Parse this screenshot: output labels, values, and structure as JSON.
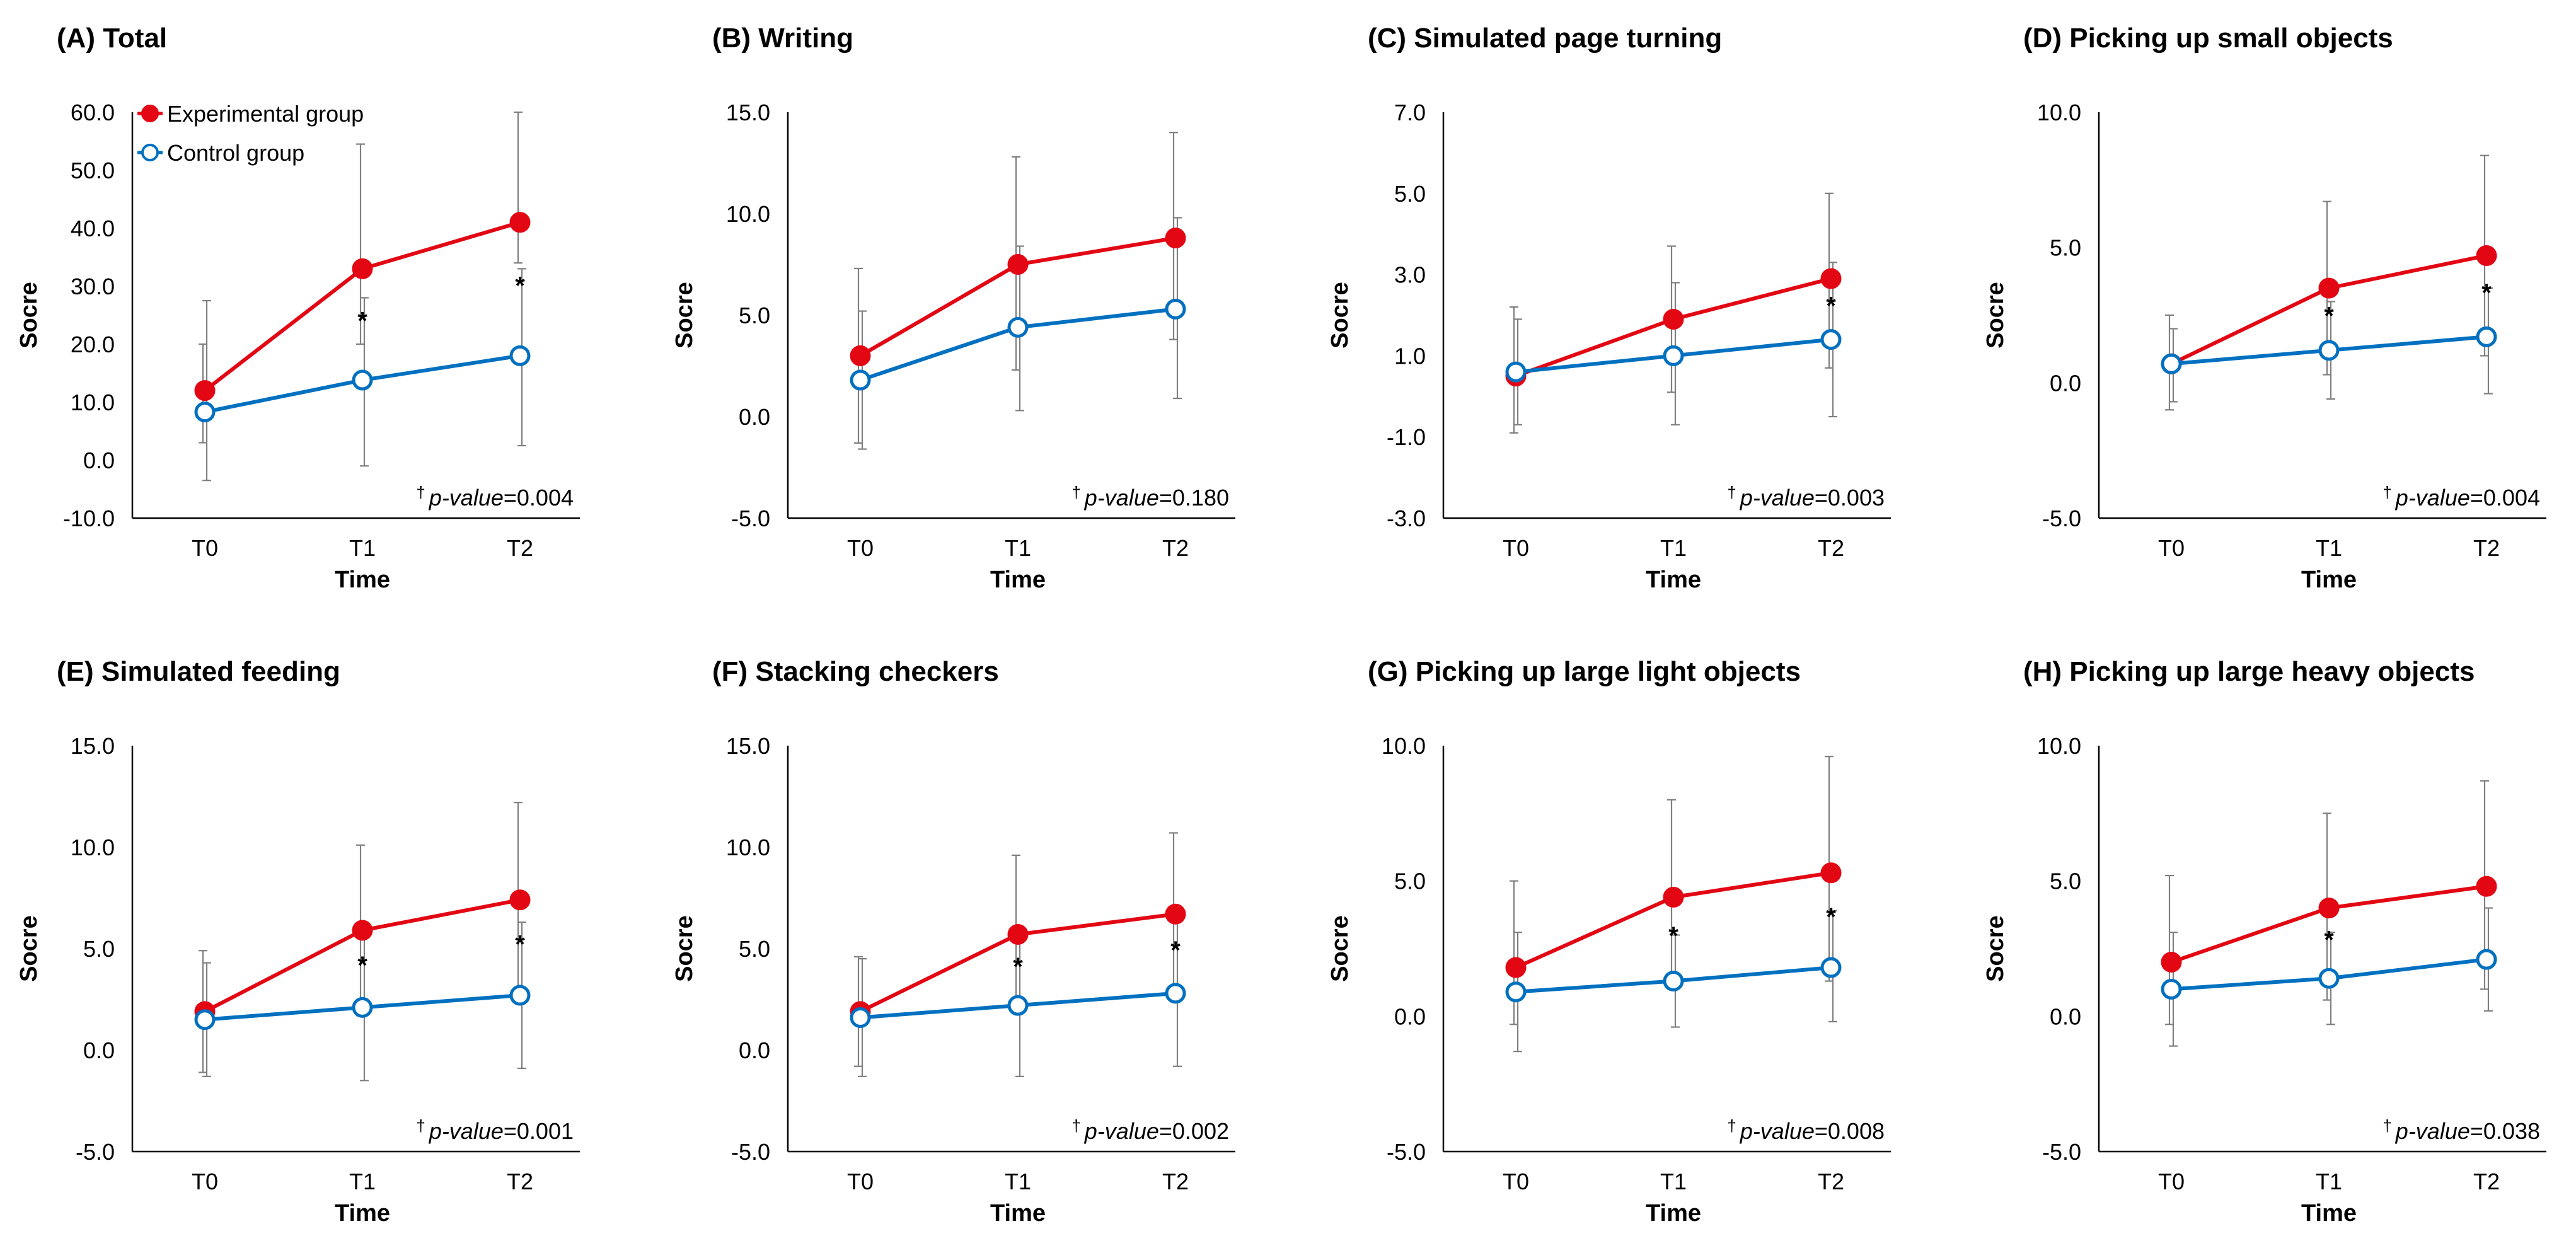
{
  "legend": {
    "experimental": "Experimental group",
    "control": "Control group"
  },
  "colors": {
    "experimental": "#e30613",
    "control": "#0070c0",
    "errorbar": "#7f7f7f",
    "axis": "#000000"
  },
  "pvalue_prefix": "p-value",
  "chart_data": [
    {
      "type": "line",
      "title": "(A) Total",
      "categories": [
        "T0",
        "T1",
        "T2"
      ],
      "xlabel": "Time",
      "ylabel": "Socre",
      "ylim": [
        -10,
        60
      ],
      "yticks": [
        -10,
        0,
        10,
        20,
        30,
        40,
        50,
        60
      ],
      "series": [
        {
          "name": "Experimental group",
          "values": [
            12.0,
            33.0,
            41.0
          ],
          "error_low": [
            3.0,
            20.0,
            34.0
          ],
          "error_high": [
            20.0,
            54.5,
            60.0
          ]
        },
        {
          "name": "Control group",
          "values": [
            8.3,
            13.8,
            18.0
          ],
          "error_low": [
            -3.5,
            -1.0,
            2.5
          ],
          "error_high": [
            27.5,
            28.0,
            33.0
          ]
        }
      ],
      "significance": [
        "",
        "*",
        "*"
      ],
      "pvalue": "0.004",
      "show_legend": true
    },
    {
      "type": "line",
      "title": "(B) Writing",
      "categories": [
        "T0",
        "T1",
        "T2"
      ],
      "xlabel": "Time",
      "ylabel": "Socre",
      "ylim": [
        -5,
        15
      ],
      "yticks": [
        -5,
        0,
        5,
        10,
        15
      ],
      "series": [
        {
          "name": "Experimental group",
          "values": [
            3.0,
            7.5,
            8.8
          ],
          "error_low": [
            -1.3,
            2.3,
            3.8
          ],
          "error_high": [
            7.3,
            12.8,
            14.0
          ]
        },
        {
          "name": "Control group",
          "values": [
            1.8,
            4.4,
            5.3
          ],
          "error_low": [
            -1.6,
            0.3,
            0.9
          ],
          "error_high": [
            5.2,
            8.4,
            9.8
          ]
        }
      ],
      "significance": [
        "",
        "",
        ""
      ],
      "pvalue": "0.180",
      "show_legend": false
    },
    {
      "type": "line",
      "title": "(C) Simulated page turning",
      "categories": [
        "T0",
        "T1",
        "T2"
      ],
      "xlabel": "Time",
      "ylabel": "Socre",
      "ylim": [
        -3,
        7
      ],
      "yticks": [
        -3,
        -1,
        1,
        3,
        5,
        7
      ],
      "series": [
        {
          "name": "Experimental group",
          "values": [
            0.5,
            1.9,
            2.9
          ],
          "error_low": [
            -0.9,
            0.1,
            0.7
          ],
          "error_high": [
            2.2,
            3.7,
            5.0
          ]
        },
        {
          "name": "Control group",
          "values": [
            0.6,
            1.0,
            1.4
          ],
          "error_low": [
            -0.7,
            -0.7,
            -0.5
          ],
          "error_high": [
            1.9,
            2.8,
            3.3
          ]
        }
      ],
      "significance": [
        "",
        "",
        "*"
      ],
      "pvalue": "0.003",
      "show_legend": false
    },
    {
      "type": "line",
      "title": "(D) Picking up small objects",
      "categories": [
        "T0",
        "T1",
        "T2"
      ],
      "xlabel": "Time",
      "ylabel": "Socre",
      "ylim": [
        -5,
        10
      ],
      "yticks": [
        -5,
        0,
        5,
        10
      ],
      "series": [
        {
          "name": "Experimental group",
          "values": [
            0.7,
            3.5,
            4.7
          ],
          "error_low": [
            -1.0,
            0.3,
            1.0
          ],
          "error_high": [
            2.5,
            6.7,
            8.4
          ]
        },
        {
          "name": "Control group",
          "values": [
            0.7,
            1.2,
            1.7
          ],
          "error_low": [
            -0.7,
            -0.6,
            -0.4
          ],
          "error_high": [
            2.0,
            3.0,
            3.5
          ]
        }
      ],
      "significance": [
        "",
        "*",
        "*"
      ],
      "pvalue": "0.004",
      "show_legend": false
    },
    {
      "type": "line",
      "title": "(E) Simulated feeding",
      "categories": [
        "T0",
        "T1",
        "T2"
      ],
      "xlabel": "Time",
      "ylabel": "Socre",
      "ylim": [
        -5,
        15
      ],
      "yticks": [
        -5,
        0,
        5,
        10,
        15
      ],
      "series": [
        {
          "name": "Experimental group",
          "values": [
            1.9,
            5.9,
            7.4
          ],
          "error_low": [
            -1.1,
            1.7,
            2.6
          ],
          "error_high": [
            4.9,
            10.1,
            12.2
          ]
        },
        {
          "name": "Control group",
          "values": [
            1.5,
            2.1,
            2.7
          ],
          "error_low": [
            -1.3,
            -1.5,
            -0.9
          ],
          "error_high": [
            4.3,
            5.7,
            6.3
          ]
        }
      ],
      "significance": [
        "",
        "*",
        "*"
      ],
      "pvalue": "0.001",
      "show_legend": false
    },
    {
      "type": "line",
      "title": "(F) Stacking checkers",
      "categories": [
        "T0",
        "T1",
        "T2"
      ],
      "xlabel": "Time",
      "ylabel": "Socre",
      "ylim": [
        -5,
        15
      ],
      "yticks": [
        -5,
        0,
        5,
        10,
        15
      ],
      "series": [
        {
          "name": "Experimental group",
          "values": [
            1.9,
            5.7,
            6.7
          ],
          "error_low": [
            -0.8,
            1.8,
            2.8
          ],
          "error_high": [
            4.6,
            9.6,
            10.7
          ]
        },
        {
          "name": "Control group",
          "values": [
            1.6,
            2.2,
            2.8
          ],
          "error_low": [
            -1.3,
            -1.3,
            -0.8
          ],
          "error_high": [
            4.5,
            5.7,
            6.4
          ]
        }
      ],
      "significance": [
        "",
        "*",
        "*"
      ],
      "pvalue": "0.002",
      "show_legend": false
    },
    {
      "type": "line",
      "title": "(G) Picking up large light objects",
      "categories": [
        "T0",
        "T1",
        "T2"
      ],
      "xlabel": "Time",
      "ylabel": "Socre",
      "ylim": [
        -5,
        10
      ],
      "yticks": [
        -5,
        0,
        5,
        10
      ],
      "series": [
        {
          "name": "Experimental group",
          "values": [
            1.8,
            4.4,
            5.3
          ],
          "error_low": [
            -0.3,
            1.0,
            1.3
          ],
          "error_high": [
            5.0,
            8.0,
            9.6
          ]
        },
        {
          "name": "Control group",
          "values": [
            0.9,
            1.3,
            1.8
          ],
          "error_low": [
            -1.3,
            -0.4,
            -0.2
          ],
          "error_high": [
            3.1,
            3.0,
            3.9
          ]
        }
      ],
      "significance": [
        "",
        "*",
        "*"
      ],
      "pvalue": "0.008",
      "show_legend": false
    },
    {
      "type": "line",
      "title": "(H) Picking up large heavy objects",
      "categories": [
        "T0",
        "T1",
        "T2"
      ],
      "xlabel": "Time",
      "ylabel": "Socre",
      "ylim": [
        -5,
        10
      ],
      "yticks": [
        -5,
        0,
        5,
        10
      ],
      "series": [
        {
          "name": "Experimental group",
          "values": [
            2.0,
            4.0,
            4.8
          ],
          "error_low": [
            -0.3,
            0.6,
            1.0
          ],
          "error_high": [
            5.2,
            7.5,
            8.7
          ]
        },
        {
          "name": "Control group",
          "values": [
            1.0,
            1.4,
            2.1
          ],
          "error_low": [
            -1.1,
            -0.3,
            0.2
          ],
          "error_high": [
            3.1,
            3.1,
            4.0
          ]
        }
      ],
      "significance": [
        "",
        "*",
        ""
      ],
      "pvalue": "0.038",
      "show_legend": false
    }
  ]
}
